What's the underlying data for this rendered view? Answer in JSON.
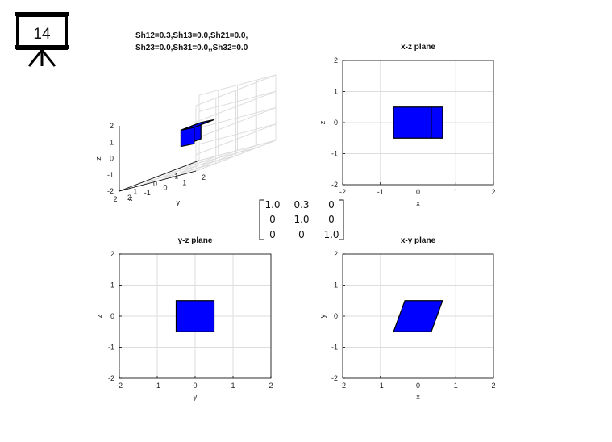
{
  "slide": {
    "number": "14",
    "icon": "presentation-board-icon"
  },
  "title_3d": {
    "line1": "Sh12=0.3,Sh13=0.0,Sh21=0.0,",
    "line2": "Sh23=0.0,Sh31=0.0,,Sh32=0.0"
  },
  "matrix": {
    "rows": [
      [
        "1.0",
        "0.3",
        "0"
      ],
      [
        "0",
        "1.0",
        "0"
      ],
      [
        "0",
        "0",
        "1.0"
      ]
    ],
    "highlight_color": "#e00000"
  },
  "colors": {
    "fill": "#0000ff",
    "edge": "#000000",
    "grid": "#dddddd"
  },
  "chart_data": [
    {
      "type": "3d-box",
      "title": "",
      "xlabel": "x",
      "ylabel": "y",
      "zlabel": "z",
      "xlim": [
        -2,
        2
      ],
      "ylim": [
        -2,
        2
      ],
      "zlim": [
        -2,
        2
      ],
      "xticks": [
        "-1",
        "0",
        "1",
        "2"
      ],
      "yticks": [
        "-2",
        "-1",
        "0",
        "1",
        "2"
      ],
      "zticks": [
        "-2",
        "-1",
        "0",
        "1",
        "2"
      ],
      "shape": {
        "x": [
          -0.5,
          0.5
        ],
        "y": [
          -0.5,
          0.5
        ],
        "z": [
          -0.5,
          0.5
        ],
        "shear_xy": 0.3
      },
      "grid": true
    },
    {
      "type": "polygon",
      "title": "x-z plane",
      "xlabel": "x",
      "ylabel": "z",
      "xlim": [
        -2,
        2
      ],
      "ylim": [
        -2,
        2
      ],
      "xticks": [
        "-2",
        "-1",
        "0",
        "1",
        "2"
      ],
      "yticks": [
        "-2",
        "-1",
        "0",
        "1",
        "2"
      ],
      "polygons": [
        [
          [
            -0.65,
            -0.5
          ],
          [
            0.65,
            -0.5
          ],
          [
            0.65,
            0.5
          ],
          [
            -0.65,
            0.5
          ]
        ]
      ],
      "edges": [
        [
          [
            0.35,
            -0.5
          ],
          [
            0.35,
            0.5
          ]
        ]
      ],
      "grid": true
    },
    {
      "type": "polygon",
      "title": "y-z plane",
      "xlabel": "y",
      "ylabel": "z",
      "xlim": [
        -2,
        2
      ],
      "ylim": [
        -2,
        2
      ],
      "xticks": [
        "-2",
        "-1",
        "0",
        "1",
        "2"
      ],
      "yticks": [
        "-2",
        "-1",
        "0",
        "1",
        "2"
      ],
      "polygons": [
        [
          [
            -0.5,
            -0.5
          ],
          [
            0.5,
            -0.5
          ],
          [
            0.5,
            0.5
          ],
          [
            -0.5,
            0.5
          ]
        ]
      ],
      "edges": [],
      "grid": true
    },
    {
      "type": "polygon",
      "title": "x-y plane",
      "xlabel": "x",
      "ylabel": "y",
      "xlim": [
        -2,
        2
      ],
      "ylim": [
        -2,
        2
      ],
      "xticks": [
        "-2",
        "-1",
        "0",
        "1",
        "2"
      ],
      "yticks": [
        "-2",
        "-1",
        "0",
        "1",
        "2"
      ],
      "polygons": [
        [
          [
            -0.65,
            -0.5
          ],
          [
            0.35,
            -0.5
          ],
          [
            0.65,
            0.5
          ],
          [
            -0.35,
            0.5
          ]
        ]
      ],
      "edges": [],
      "grid": true
    }
  ]
}
